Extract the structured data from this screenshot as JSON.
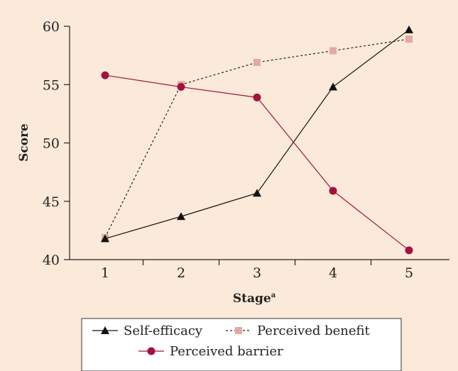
{
  "chart_data": {
    "type": "line",
    "x": [
      1,
      2,
      3,
      4,
      5
    ],
    "xlabel": "Stage",
    "xlabel_superscript": "a",
    "ylabel": "Score",
    "xlim": [
      0.5,
      5.5
    ],
    "ylim": [
      40,
      60
    ],
    "xticks": [
      "1",
      "2",
      "3",
      "4",
      "5"
    ],
    "yticks": [
      "40",
      "45",
      "50",
      "55",
      "60"
    ],
    "grid": false,
    "legend_position": "bottom",
    "series": [
      {
        "name": "Self-efficacy",
        "values": [
          41.8,
          43.7,
          45.7,
          54.8,
          59.7
        ],
        "color": "#111111",
        "marker": "triangle",
        "line": "solid"
      },
      {
        "name": "Perceived benefit",
        "values": [
          41.9,
          55.0,
          56.9,
          57.9,
          58.9
        ],
        "color": "#e3a9a3",
        "line_color": "#222222",
        "marker": "square",
        "line": "dashed"
      },
      {
        "name": "Perceived barrier",
        "values": [
          55.8,
          54.8,
          53.9,
          45.9,
          40.8
        ],
        "color": "#a3123f",
        "marker": "circle",
        "line": "solid"
      }
    ]
  },
  "colors": {
    "background": "#fbe9d9",
    "legend_background": "#ffffff"
  }
}
